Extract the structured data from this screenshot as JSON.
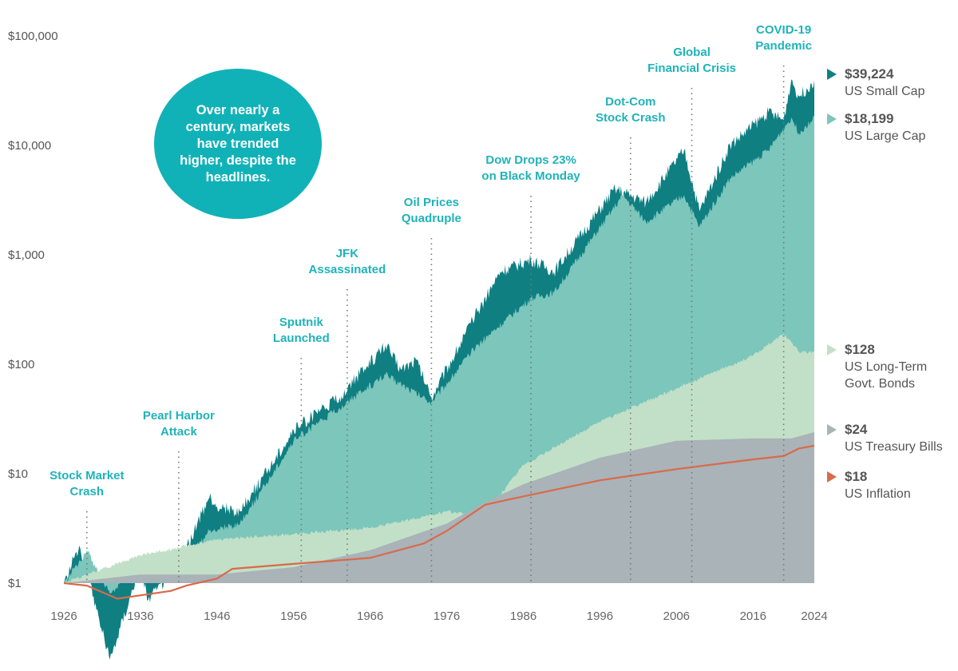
{
  "chart_data": {
    "type": "area",
    "title": "",
    "callout": "Over nearly a century, markets have trended higher, despite the headlines.",
    "xlabel": "",
    "ylabel": "",
    "yscale": "log",
    "ylim": [
      1,
      100000
    ],
    "xlim": [
      1926,
      2024
    ],
    "y_ticks": [
      "$1",
      "$10",
      "$100",
      "$1,000",
      "$10,000",
      "$100,000"
    ],
    "y_tick_values": [
      1,
      10,
      100,
      1000,
      10000,
      100000
    ],
    "x_ticks": [
      1926,
      1936,
      1946,
      1956,
      1966,
      1976,
      1986,
      1996,
      2006,
      2016,
      2024
    ],
    "grid": false,
    "series": [
      {
        "name": "US Small Cap",
        "final_label": "$39,224",
        "color": "#0f7f82",
        "x": [
          1926,
          1928,
          1929,
          1932,
          1936,
          1937,
          1941,
          1945,
          1946,
          1949,
          1956,
          1962,
          1968,
          1970,
          1972,
          1974,
          1980,
          1983,
          1987,
          1990,
          1998,
          2002,
          2007,
          2009,
          2013,
          2018,
          2020,
          2021,
          2022,
          2024
        ],
        "values": [
          1,
          2.2,
          1.3,
          0.2,
          1.5,
          0.7,
          1.5,
          6,
          5,
          4.5,
          25,
          50,
          150,
          90,
          110,
          50,
          300,
          700,
          900,
          700,
          4000,
          3000,
          9000,
          2500,
          10000,
          20000,
          17000,
          40000,
          28000,
          39224
        ]
      },
      {
        "name": "US Large Cap",
        "final_label": "$18,199",
        "color": "#7cc6bb",
        "x": [
          1926,
          1929,
          1932,
          1936,
          1937,
          1941,
          1945,
          1949,
          1956,
          1962,
          1968,
          1974,
          1980,
          1987,
          1990,
          1999,
          2002,
          2007,
          2009,
          2013,
          2018,
          2021,
          2022,
          2024
        ],
        "values": [
          1,
          2,
          0.8,
          1.6,
          1.1,
          1.2,
          3,
          3.5,
          20,
          40,
          80,
          45,
          150,
          400,
          450,
          3500,
          2000,
          3500,
          1800,
          5000,
          9000,
          18000,
          13000,
          18199
        ]
      },
      {
        "name": "US Long-Term Govt. Bonds",
        "final_label": "$128",
        "color": "#c2e0c7",
        "x": [
          1926,
          1936,
          1946,
          1956,
          1966,
          1976,
          1981,
          1986,
          1996,
          2006,
          2016,
          2020,
          2022,
          2024
        ],
        "values": [
          1,
          1.8,
          2.5,
          2.8,
          3.2,
          4.5,
          4.2,
          12,
          30,
          60,
          120,
          190,
          130,
          128
        ]
      },
      {
        "name": "US Treasury Bills",
        "final_label": "$24",
        "color": "#a9b3b8",
        "x": [
          1926,
          1936,
          1946,
          1956,
          1966,
          1976,
          1981,
          1986,
          1996,
          2006,
          2016,
          2021,
          2024
        ],
        "values": [
          1,
          1.2,
          1.2,
          1.4,
          2.0,
          3.5,
          5.5,
          8,
          14,
          20,
          21,
          21,
          24
        ]
      },
      {
        "name": "US Inflation",
        "final_label": "$18",
        "color": "#d96a4a",
        "x": [
          1926,
          1929,
          1933,
          1940,
          1942,
          1946,
          1948,
          1956,
          1966,
          1973,
          1976,
          1981,
          1986,
          1996,
          2006,
          2016,
          2020,
          2022,
          2024
        ],
        "values": [
          1,
          0.95,
          0.72,
          0.85,
          0.95,
          1.1,
          1.35,
          1.5,
          1.7,
          2.3,
          3.0,
          5.2,
          6.2,
          8.7,
          11,
          13.5,
          14.5,
          17,
          18
        ]
      }
    ],
    "annotations": [
      {
        "year": 1929,
        "label": [
          "Stock Market",
          "Crash"
        ]
      },
      {
        "year": 1941,
        "label": [
          "Pearl Harbor",
          "Attack"
        ]
      },
      {
        "year": 1957,
        "label": [
          "Sputnik",
          "Launched"
        ]
      },
      {
        "year": 1963,
        "label": [
          "JFK",
          "Assassinated"
        ]
      },
      {
        "year": 1974,
        "label": [
          "Oil Prices",
          "Quadruple"
        ]
      },
      {
        "year": 1987,
        "label": [
          "Dow Drops 23%",
          "on Black Monday"
        ]
      },
      {
        "year": 2000,
        "label": [
          "Dot-Com",
          "Stock Crash"
        ]
      },
      {
        "year": 2008,
        "label": [
          "Global",
          "Financial Crisis"
        ]
      },
      {
        "year": 2020,
        "label": [
          "COVID-19",
          "Pandemic"
        ]
      }
    ],
    "legend": "right"
  }
}
